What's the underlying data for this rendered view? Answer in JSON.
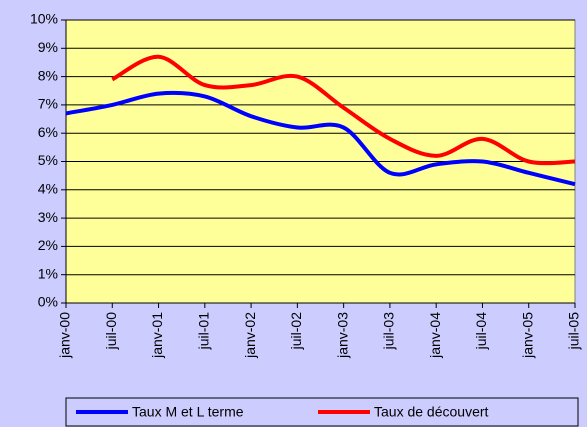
{
  "chart_data": {
    "type": "line",
    "categories": [
      "janv-00",
      "juil-00",
      "janv-01",
      "juil-01",
      "janv-02",
      "juil-02",
      "janv-03",
      "juil-03",
      "janv-04",
      "juil-04",
      "janv-05",
      "juil-05"
    ],
    "series": [
      {
        "name": "Taux M et L terme",
        "color": "#0000ff",
        "values": [
          6.7,
          7.0,
          7.4,
          7.3,
          6.6,
          6.2,
          6.2,
          4.6,
          4.9,
          5.0,
          4.6,
          4.2
        ]
      },
      {
        "name": "Taux de découvert",
        "color": "#ff0000",
        "values": [
          null,
          7.9,
          8.7,
          7.7,
          7.7,
          8.0,
          6.9,
          5.8,
          5.2,
          5.8,
          5.0,
          5.0
        ]
      }
    ],
    "ylim": [
      0,
      10
    ],
    "yticks": [
      {
        "value": 0,
        "label": "0%"
      },
      {
        "value": 1,
        "label": "1%"
      },
      {
        "value": 2,
        "label": "2%"
      },
      {
        "value": 3,
        "label": "3%"
      },
      {
        "value": 4,
        "label": "4%"
      },
      {
        "value": 5,
        "label": "5%"
      },
      {
        "value": 6,
        "label": "6%"
      },
      {
        "value": 7,
        "label": "7%"
      },
      {
        "value": 8,
        "label": "8%"
      },
      {
        "value": 9,
        "label": "9%"
      },
      {
        "value": 10,
        "label": "10%"
      }
    ],
    "grid": true,
    "legend": "bottom",
    "smooth": true
  }
}
